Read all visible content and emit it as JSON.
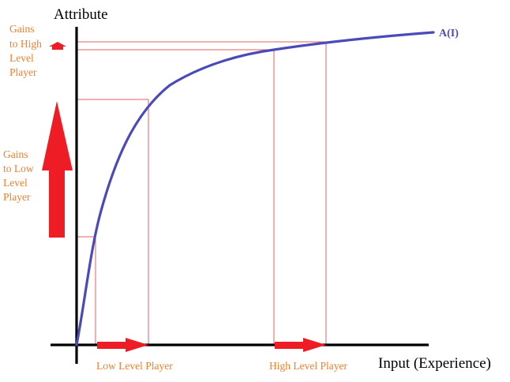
{
  "colors": {
    "axis": "#000000",
    "curve": "#4a4ab8",
    "guide": "#e06060",
    "arrow": "#ee1c24",
    "annotation_text": "#f07f2a"
  },
  "axes": {
    "y_title": "Attribute",
    "x_title": "Input (Experience)"
  },
  "curve": {
    "label": "A(I)"
  },
  "annotations": {
    "high_gains": [
      "Gains",
      "to High",
      "Level",
      "Player"
    ],
    "low_gains": [
      "Gains",
      "to Low",
      "Level",
      "Player"
    ],
    "low_player": "Low Level Player",
    "high_player": "High Level Player"
  }
}
